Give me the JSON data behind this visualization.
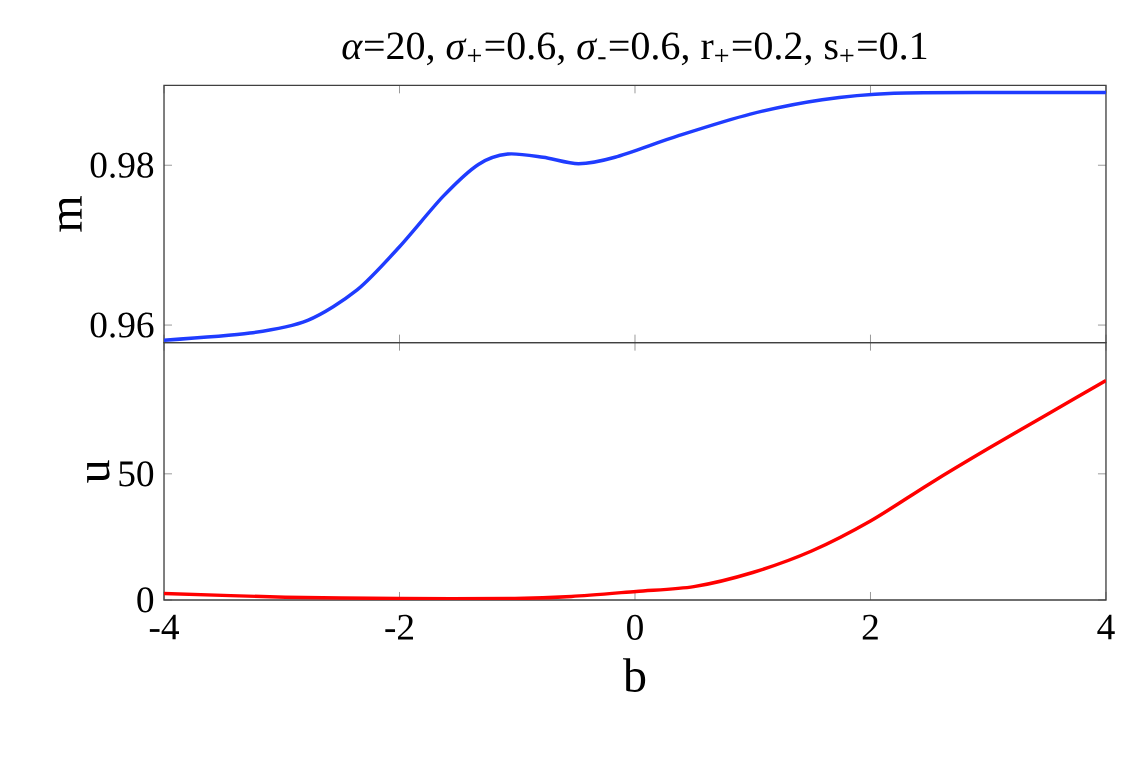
{
  "chart_data": [
    {
      "type": "line",
      "title": "*α*=20, *σ*$_{+}$=0.6, *σ*$_{-}$=0.6, r$_{+}$=0.2, s$_{+}$=0.1",
      "ylabel": "m",
      "x": [
        -4,
        -3.27,
        -2.78,
        -2.36,
        -2.0,
        -1.63,
        -1.33,
        -1.08,
        -0.78,
        -0.48,
        -0.17,
        0.37,
        0.98,
        1.59,
        2.2,
        3.1,
        4
      ],
      "series": [
        {
          "color": "#1f3cff",
          "values": [
            0.9581,
            0.959,
            0.9606,
            0.9644,
            0.9698,
            0.9761,
            0.9801,
            0.9814,
            0.981,
            0.9802,
            0.981,
            0.9837,
            0.9864,
            0.9882,
            0.989,
            0.9891,
            0.9891
          ]
        }
      ],
      "xlim": [
        -4,
        4
      ],
      "xticks": [
        -4,
        -2,
        0,
        2,
        4
      ],
      "ylim": [
        0.9578,
        0.99
      ],
      "yticks": [
        0.96,
        0.98
      ],
      "tick_labels": "y"
    },
    {
      "type": "line",
      "xlabel": "b",
      "ylabel": "u",
      "x": [
        -4,
        -2.97,
        -2.0,
        -1.02,
        -0.54,
        0.01,
        0.5,
        1.0,
        1.5,
        2.0,
        2.5,
        3.0,
        3.5,
        4.0
      ],
      "series": [
        {
          "color": "#ff0000",
          "values": [
            2.6,
            1.1,
            0.6,
            0.6,
            1.4,
            3.4,
            5.3,
            10.9,
            19.4,
            31.3,
            46,
            60,
            73.5,
            87
          ]
        }
      ],
      "xlim": [
        -4,
        4
      ],
      "xticks": [
        -4,
        -2,
        0,
        2,
        4
      ],
      "ylim": [
        0,
        102
      ],
      "yticks": [
        0,
        50
      ]
    }
  ]
}
